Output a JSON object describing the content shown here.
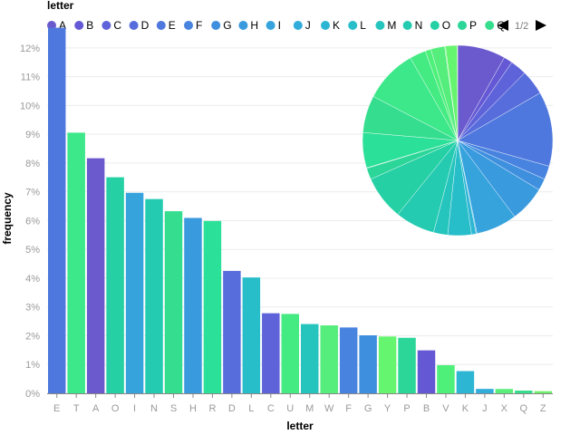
{
  "chart_data": {
    "type": "bar",
    "xlabel": "letter",
    "ylabel": "frequency",
    "ylim": [
      0,
      0.125
    ],
    "y_ticks": [
      "0%",
      "1%",
      "2%",
      "3%",
      "4%",
      "5%",
      "6%",
      "7%",
      "8%",
      "9%",
      "10%",
      "11%",
      "12%"
    ],
    "grid": true,
    "categories": [
      "E",
      "T",
      "A",
      "O",
      "I",
      "N",
      "S",
      "H",
      "R",
      "D",
      "L",
      "C",
      "U",
      "M",
      "W",
      "F",
      "G",
      "Y",
      "P",
      "B",
      "V",
      "K",
      "J",
      "X",
      "Q",
      "Z"
    ],
    "values": [
      0.12702,
      0.09056,
      0.08167,
      0.07507,
      0.06966,
      0.06749,
      0.06327,
      0.06094,
      0.05987,
      0.04253,
      0.04025,
      0.02782,
      0.02758,
      0.02406,
      0.0236,
      0.02288,
      0.02015,
      0.01974,
      0.01929,
      0.01492,
      0.00978,
      0.00772,
      0.00153,
      0.0015,
      0.00095,
      0.00074
    ],
    "pie": {
      "order": [
        "A",
        "B",
        "C",
        "D",
        "E",
        "F",
        "G",
        "H",
        "I",
        "J",
        "K",
        "L",
        "M",
        "N",
        "O",
        "P",
        "Q",
        "R",
        "S",
        "T",
        "U",
        "V",
        "W",
        "X",
        "Y",
        "Z"
      ],
      "values": [
        0.08167,
        0.01492,
        0.02782,
        0.04253,
        0.12702,
        0.02288,
        0.02015,
        0.06094,
        0.06966,
        0.00153,
        0.00772,
        0.04025,
        0.02406,
        0.06749,
        0.07507,
        0.01929,
        0.00095,
        0.05987,
        0.06327,
        0.09056,
        0.02758,
        0.00978,
        0.0236,
        0.0015,
        0.01974,
        0.00074
      ]
    },
    "legend": {
      "title": "letter",
      "placement": "top",
      "items": [
        "A",
        "B",
        "C",
        "D",
        "E",
        "F",
        "G",
        "H",
        "I",
        "J",
        "K",
        "L",
        "M",
        "N",
        "O",
        "P",
        "Q"
      ],
      "page": "1/2"
    }
  },
  "colors": {
    "A": "#6a5acd",
    "B": "#6458d4",
    "C": "#5f63d9",
    "D": "#586ddc",
    "E": "#4f78de",
    "F": "#4783df",
    "G": "#3f8fdf",
    "H": "#3a9ade",
    "I": "#37a3dd",
    "J": "#32addb",
    "K": "#2db6d4",
    "L": "#28bec9",
    "M": "#25c5bd",
    "N": "#24cbb1",
    "O": "#25d0a5",
    "P": "#2bd698",
    "Q": "#36dd8c",
    "R": "#2be098",
    "S": "#35de8f",
    "T": "#3ce88a",
    "U": "#44ea82",
    "V": "#4ef07a",
    "W": "#55ed7c",
    "X": "#5aee7a",
    "Y": "#66f56e",
    "Z": "#6ef068"
  },
  "icons": {
    "prev": "triangle-left-icon",
    "next": "triangle-right-icon"
  }
}
